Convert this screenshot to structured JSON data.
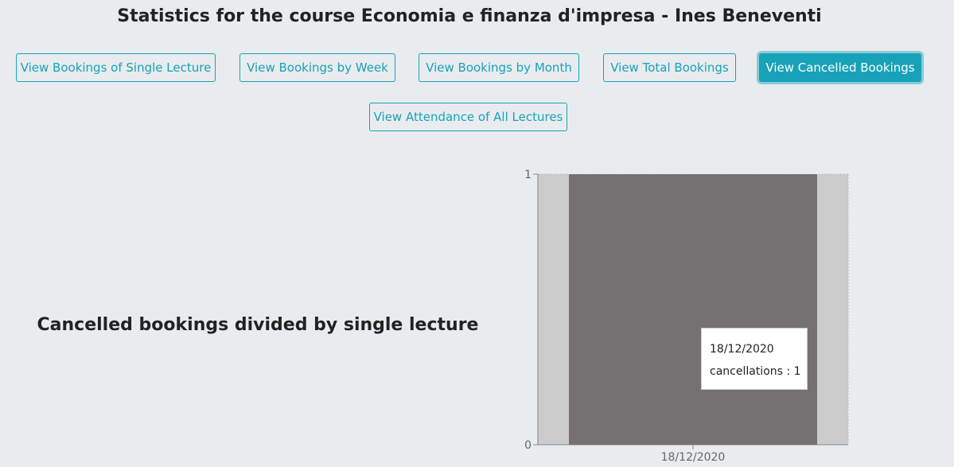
{
  "header": {
    "title": "Statistics for the course Economia e finanza d'impresa - Ines Beneventi"
  },
  "toolbar": {
    "buttons": [
      {
        "label": "View Bookings of Single Lecture",
        "active": false
      },
      {
        "label": "View Bookings by Week",
        "active": false
      },
      {
        "label": "View Bookings by Month",
        "active": false
      },
      {
        "label": "View Total Bookings",
        "active": false
      },
      {
        "label": "View Cancelled Bookings",
        "active": true
      },
      {
        "label": "View Attendance of All Lectures",
        "active": false
      }
    ]
  },
  "main": {
    "chart_heading": "Cancelled bookings divided by single lecture"
  },
  "tooltip": {
    "date": "18/12/2020",
    "series_label": "cancellations",
    "separator": " : ",
    "value_text": "1"
  },
  "colors": {
    "accent": "#17a2b8",
    "bar": "#757071",
    "hover_band": "#cccccc"
  },
  "chart_data": {
    "type": "bar",
    "categories": [
      "18/12/2020"
    ],
    "series": [
      {
        "name": "cancellations",
        "values": [
          1
        ]
      }
    ],
    "title": "",
    "xlabel": "",
    "ylabel": "",
    "ylim": [
      0,
      1
    ],
    "yticks": [
      "0",
      "1"
    ],
    "grid": false,
    "legend": "none"
  }
}
